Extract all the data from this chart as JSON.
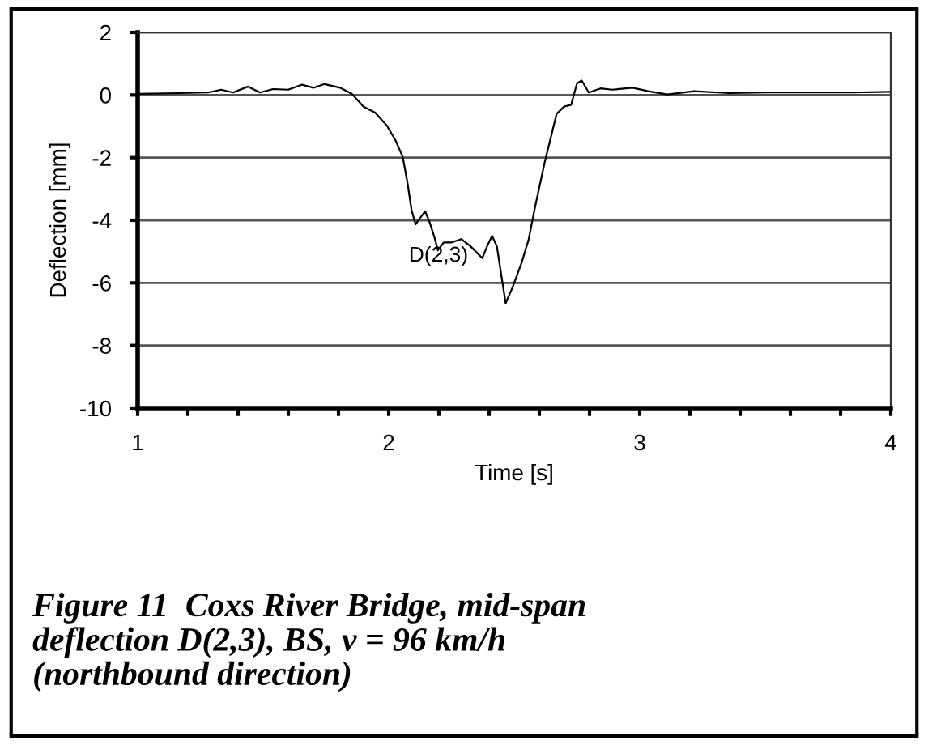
{
  "chart_data": {
    "type": "line",
    "xlabel": "Time [s]",
    "ylabel": "Deflection [mm]",
    "annotations": [
      "Figure 11  Coxs River Bridge, mid-span\ndeflection D(2,3), BS, v = 96 km/h\n(northbound direction)"
    ],
    "xlim": [
      1,
      4
    ],
    "ylim": [
      -10,
      2
    ],
    "xticks": [
      1,
      {
        "value": 1.2,
        "label": null
      },
      {
        "value": 1.4,
        "label": null
      },
      {
        "value": 1.6,
        "label": null
      },
      {
        "value": 1.8,
        "label": null
      },
      2,
      {
        "value": 2.2,
        "label": null
      },
      {
        "value": 2.4,
        "label": null
      },
      {
        "value": 2.6,
        "label": null
      },
      {
        "value": 2.8,
        "label": null
      },
      3,
      {
        "value": 3.2,
        "label": null
      },
      {
        "value": 3.4,
        "label": null
      },
      {
        "value": 3.6,
        "label": null
      },
      {
        "value": 3.8,
        "label": null
      },
      4
    ],
    "yticks": [
      -10,
      -8,
      -6,
      -4,
      -2,
      0,
      2
    ],
    "grid": "y",
    "legend": false,
    "marker": "none",
    "line_style": "solid",
    "series": [
      {
        "name": "D(2,3)",
        "color": "#000000",
        "x": [
          1.0,
          1.165,
          1.28,
          1.333,
          1.38,
          1.44,
          1.487,
          1.54,
          1.6,
          1.655,
          1.7,
          1.744,
          1.807,
          1.853,
          1.9,
          1.946,
          1.993,
          2.028,
          2.056,
          2.075,
          2.091,
          2.107,
          2.126,
          2.145,
          2.163,
          2.182,
          2.196,
          2.219,
          2.249,
          2.289,
          2.326,
          2.373,
          2.392,
          2.412,
          2.431,
          2.466,
          2.494,
          2.529,
          2.557,
          2.583,
          2.622,
          2.669,
          2.699,
          2.727,
          2.75,
          2.769,
          2.797,
          2.844,
          2.89,
          2.972,
          3.03,
          3.11,
          3.217,
          3.357,
          3.497,
          3.683,
          3.846,
          4.0
        ],
        "values": [
          0.04,
          0.06,
          0.08,
          0.17,
          0.08,
          0.27,
          0.08,
          0.19,
          0.17,
          0.33,
          0.23,
          0.35,
          0.23,
          0.04,
          -0.37,
          -0.56,
          -0.98,
          -1.46,
          -1.98,
          -2.81,
          -3.67,
          -4.13,
          -3.92,
          -3.71,
          -4.06,
          -4.54,
          -4.96,
          -4.71,
          -4.71,
          -4.6,
          -4.83,
          -5.21,
          -4.83,
          -4.5,
          -4.83,
          -6.65,
          -6.13,
          -5.37,
          -4.63,
          -3.58,
          -2.13,
          -0.6,
          -0.37,
          -0.31,
          0.37,
          0.46,
          0.08,
          0.21,
          0.17,
          0.23,
          0.13,
          0.02,
          0.12,
          0.06,
          0.08,
          0.08,
          0.08,
          0.1
        ]
      }
    ]
  }
}
